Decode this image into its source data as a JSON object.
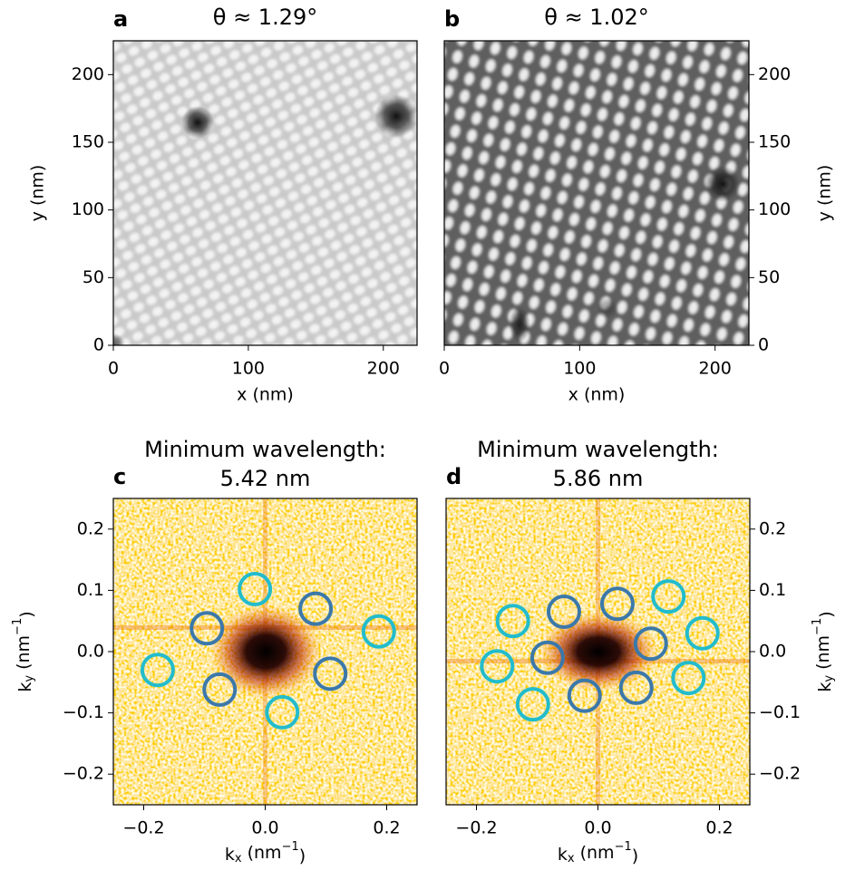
{
  "chart_data": [
    {
      "type": "image",
      "label": "a",
      "title": "θ ≈ 1.29°",
      "xlabel": "x (nm)",
      "ylabel": "y (nm)",
      "y_axis_side": "left",
      "xlim": [
        0,
        225
      ],
      "ylim": [
        0,
        225
      ],
      "xticks": [
        0,
        100,
        200
      ],
      "yticks": [
        0,
        50,
        100,
        150,
        200
      ]
    },
    {
      "type": "image",
      "label": "b",
      "title": "θ ≈ 1.02°",
      "xlabel": "x (nm)",
      "ylabel": "y (nm)",
      "y_axis_side": "right",
      "xlim": [
        0,
        225
      ],
      "ylim": [
        0,
        225
      ],
      "xticks": [
        0,
        100,
        200
      ],
      "yticks": [
        0,
        50,
        100,
        150,
        200
      ]
    },
    {
      "type": "scatter",
      "label": "c",
      "title": "Minimum wavelength:",
      "subtitle": "5.42 nm",
      "xlabel": [
        "k",
        "x",
        " (nm",
        "−1",
        ")"
      ],
      "ylabel": [
        "k",
        "y",
        " (nm",
        "−1",
        ")"
      ],
      "y_axis_side": "left",
      "xlim": [
        -0.25,
        0.25
      ],
      "ylim": [
        -0.25,
        0.25
      ],
      "xticks": [
        {
          "value": -0.2,
          "label": "−0.2"
        },
        {
          "value": 0,
          "label": "0.0"
        },
        0.2
      ],
      "yticks": [
        {
          "value": -0.2,
          "label": "−0.2"
        },
        {
          "value": -0.1,
          "label": "−0.1"
        },
        {
          "value": 0,
          "label": "0.0"
        },
        0.1,
        0.2
      ],
      "series": [
        {
          "color": "#3b78aa",
          "x": [
            -0.096,
            0.083,
            0.107,
            -0.075
          ],
          "y": [
            0.038,
            0.07,
            -0.036,
            -0.062
          ]
        },
        {
          "color": "#22bccc",
          "x": [
            -0.017,
            0.187,
            -0.177,
            0.028
          ],
          "y": [
            0.102,
            0.033,
            -0.03,
            -0.099
          ]
        }
      ]
    },
    {
      "type": "scatter",
      "label": "d",
      "title": "Minimum wavelength:",
      "subtitle": "5.86 nm",
      "xlabel": [
        "k",
        "x",
        " (nm",
        "−1",
        ")"
      ],
      "ylabel": [
        "k",
        "y",
        " (nm",
        "−1",
        ")"
      ],
      "y_axis_side": "right",
      "xlim": [
        -0.25,
        0.25
      ],
      "ylim": [
        -0.25,
        0.25
      ],
      "xticks": [
        {
          "value": -0.2,
          "label": "−0.2"
        },
        {
          "value": 0,
          "label": "0.0"
        },
        0.2
      ],
      "yticks": [
        {
          "value": -0.2,
          "label": "−0.2"
        },
        {
          "value": -0.1,
          "label": "−0.1"
        },
        {
          "value": 0,
          "label": "0.0"
        },
        0.1,
        0.2
      ],
      "series": [
        {
          "color": "#3b78aa",
          "x": [
            -0.056,
            0.032,
            -0.083,
            0.087,
            -0.022,
            0.063
          ],
          "y": [
            0.065,
            0.078,
            -0.01,
            0.013,
            -0.072,
            -0.059
          ]
        },
        {
          "color": "#22bccc",
          "x": [
            0.116,
            -0.14,
            0.172,
            -0.166,
            0.149,
            -0.107
          ],
          "y": [
            0.09,
            0.05,
            0.03,
            -0.024,
            -0.043,
            -0.086
          ]
        }
      ]
    }
  ]
}
